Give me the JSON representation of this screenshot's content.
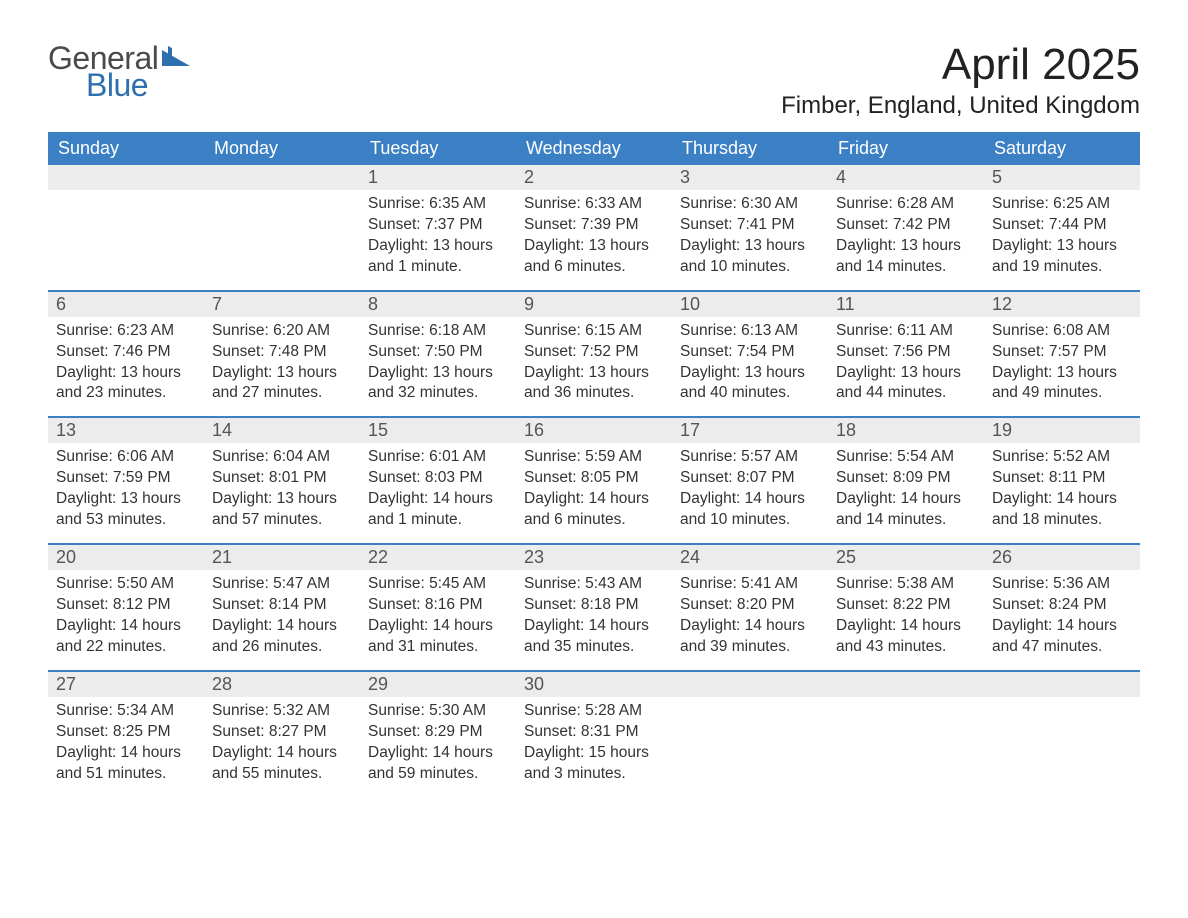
{
  "logo": {
    "text1": "General",
    "text2": "Blue",
    "icon_color": "#2f6fb0",
    "text1_color": "#4a4a4a"
  },
  "title": "April 2025",
  "location": "Fimber, England, United Kingdom",
  "colors": {
    "header_bg": "#3b7fc4",
    "header_text": "#ffffff",
    "daynum_bg": "#ececec",
    "daynum_text": "#555555",
    "body_text": "#333333",
    "week_border": "#3b7fc4",
    "page_bg": "#ffffff"
  },
  "fonts": {
    "title_size_pt": 33,
    "location_size_pt": 18,
    "header_size_pt": 14,
    "daynum_size_pt": 14,
    "body_size_pt": 12
  },
  "weekdays": [
    "Sunday",
    "Monday",
    "Tuesday",
    "Wednesday",
    "Thursday",
    "Friday",
    "Saturday"
  ],
  "weeks": [
    [
      {
        "num": "",
        "sunrise": "",
        "sunset": "",
        "daylight": ""
      },
      {
        "num": "",
        "sunrise": "",
        "sunset": "",
        "daylight": ""
      },
      {
        "num": "1",
        "sunrise": "Sunrise: 6:35 AM",
        "sunset": "Sunset: 7:37 PM",
        "daylight": "Daylight: 13 hours and 1 minute."
      },
      {
        "num": "2",
        "sunrise": "Sunrise: 6:33 AM",
        "sunset": "Sunset: 7:39 PM",
        "daylight": "Daylight: 13 hours and 6 minutes."
      },
      {
        "num": "3",
        "sunrise": "Sunrise: 6:30 AM",
        "sunset": "Sunset: 7:41 PM",
        "daylight": "Daylight: 13 hours and 10 minutes."
      },
      {
        "num": "4",
        "sunrise": "Sunrise: 6:28 AM",
        "sunset": "Sunset: 7:42 PM",
        "daylight": "Daylight: 13 hours and 14 minutes."
      },
      {
        "num": "5",
        "sunrise": "Sunrise: 6:25 AM",
        "sunset": "Sunset: 7:44 PM",
        "daylight": "Daylight: 13 hours and 19 minutes."
      }
    ],
    [
      {
        "num": "6",
        "sunrise": "Sunrise: 6:23 AM",
        "sunset": "Sunset: 7:46 PM",
        "daylight": "Daylight: 13 hours and 23 minutes."
      },
      {
        "num": "7",
        "sunrise": "Sunrise: 6:20 AM",
        "sunset": "Sunset: 7:48 PM",
        "daylight": "Daylight: 13 hours and 27 minutes."
      },
      {
        "num": "8",
        "sunrise": "Sunrise: 6:18 AM",
        "sunset": "Sunset: 7:50 PM",
        "daylight": "Daylight: 13 hours and 32 minutes."
      },
      {
        "num": "9",
        "sunrise": "Sunrise: 6:15 AM",
        "sunset": "Sunset: 7:52 PM",
        "daylight": "Daylight: 13 hours and 36 minutes."
      },
      {
        "num": "10",
        "sunrise": "Sunrise: 6:13 AM",
        "sunset": "Sunset: 7:54 PM",
        "daylight": "Daylight: 13 hours and 40 minutes."
      },
      {
        "num": "11",
        "sunrise": "Sunrise: 6:11 AM",
        "sunset": "Sunset: 7:56 PM",
        "daylight": "Daylight: 13 hours and 44 minutes."
      },
      {
        "num": "12",
        "sunrise": "Sunrise: 6:08 AM",
        "sunset": "Sunset: 7:57 PM",
        "daylight": "Daylight: 13 hours and 49 minutes."
      }
    ],
    [
      {
        "num": "13",
        "sunrise": "Sunrise: 6:06 AM",
        "sunset": "Sunset: 7:59 PM",
        "daylight": "Daylight: 13 hours and 53 minutes."
      },
      {
        "num": "14",
        "sunrise": "Sunrise: 6:04 AM",
        "sunset": "Sunset: 8:01 PM",
        "daylight": "Daylight: 13 hours and 57 minutes."
      },
      {
        "num": "15",
        "sunrise": "Sunrise: 6:01 AM",
        "sunset": "Sunset: 8:03 PM",
        "daylight": "Daylight: 14 hours and 1 minute."
      },
      {
        "num": "16",
        "sunrise": "Sunrise: 5:59 AM",
        "sunset": "Sunset: 8:05 PM",
        "daylight": "Daylight: 14 hours and 6 minutes."
      },
      {
        "num": "17",
        "sunrise": "Sunrise: 5:57 AM",
        "sunset": "Sunset: 8:07 PM",
        "daylight": "Daylight: 14 hours and 10 minutes."
      },
      {
        "num": "18",
        "sunrise": "Sunrise: 5:54 AM",
        "sunset": "Sunset: 8:09 PM",
        "daylight": "Daylight: 14 hours and 14 minutes."
      },
      {
        "num": "19",
        "sunrise": "Sunrise: 5:52 AM",
        "sunset": "Sunset: 8:11 PM",
        "daylight": "Daylight: 14 hours and 18 minutes."
      }
    ],
    [
      {
        "num": "20",
        "sunrise": "Sunrise: 5:50 AM",
        "sunset": "Sunset: 8:12 PM",
        "daylight": "Daylight: 14 hours and 22 minutes."
      },
      {
        "num": "21",
        "sunrise": "Sunrise: 5:47 AM",
        "sunset": "Sunset: 8:14 PM",
        "daylight": "Daylight: 14 hours and 26 minutes."
      },
      {
        "num": "22",
        "sunrise": "Sunrise: 5:45 AM",
        "sunset": "Sunset: 8:16 PM",
        "daylight": "Daylight: 14 hours and 31 minutes."
      },
      {
        "num": "23",
        "sunrise": "Sunrise: 5:43 AM",
        "sunset": "Sunset: 8:18 PM",
        "daylight": "Daylight: 14 hours and 35 minutes."
      },
      {
        "num": "24",
        "sunrise": "Sunrise: 5:41 AM",
        "sunset": "Sunset: 8:20 PM",
        "daylight": "Daylight: 14 hours and 39 minutes."
      },
      {
        "num": "25",
        "sunrise": "Sunrise: 5:38 AM",
        "sunset": "Sunset: 8:22 PM",
        "daylight": "Daylight: 14 hours and 43 minutes."
      },
      {
        "num": "26",
        "sunrise": "Sunrise: 5:36 AM",
        "sunset": "Sunset: 8:24 PM",
        "daylight": "Daylight: 14 hours and 47 minutes."
      }
    ],
    [
      {
        "num": "27",
        "sunrise": "Sunrise: 5:34 AM",
        "sunset": "Sunset: 8:25 PM",
        "daylight": "Daylight: 14 hours and 51 minutes."
      },
      {
        "num": "28",
        "sunrise": "Sunrise: 5:32 AM",
        "sunset": "Sunset: 8:27 PM",
        "daylight": "Daylight: 14 hours and 55 minutes."
      },
      {
        "num": "29",
        "sunrise": "Sunrise: 5:30 AM",
        "sunset": "Sunset: 8:29 PM",
        "daylight": "Daylight: 14 hours and 59 minutes."
      },
      {
        "num": "30",
        "sunrise": "Sunrise: 5:28 AM",
        "sunset": "Sunset: 8:31 PM",
        "daylight": "Daylight: 15 hours and 3 minutes."
      },
      {
        "num": "",
        "sunrise": "",
        "sunset": "",
        "daylight": ""
      },
      {
        "num": "",
        "sunrise": "",
        "sunset": "",
        "daylight": ""
      },
      {
        "num": "",
        "sunrise": "",
        "sunset": "",
        "daylight": ""
      }
    ]
  ]
}
